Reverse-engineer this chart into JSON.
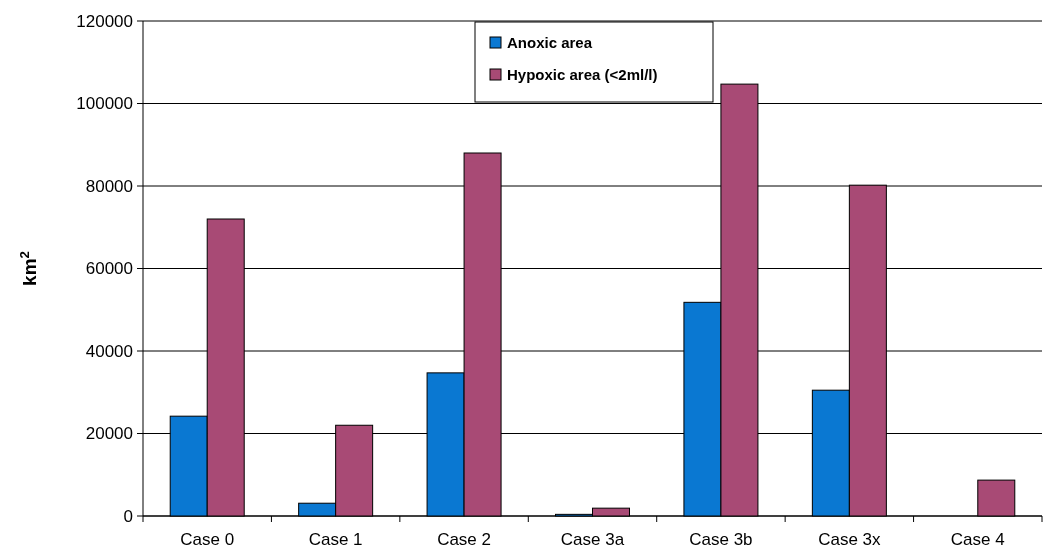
{
  "chart_data": {
    "type": "bar",
    "ylabel": "km$^{2}$",
    "categories": [
      "Case 0",
      "Case 1",
      "Case 2",
      "Case 3a",
      "Case 3b",
      "Case 3x",
      "Case 4"
    ],
    "series": [
      {
        "name": "Anoxic area",
        "color": "#0a78d2",
        "values": [
          24200,
          3100,
          34700,
          400,
          51800,
          30500,
          0
        ]
      },
      {
        "name": "Hypoxic area (<2ml/l)",
        "color": "#a84a75",
        "values": [
          72000,
          22000,
          88000,
          1900,
          104700,
          80200,
          8700
        ]
      }
    ],
    "ylim": [
      0,
      120000
    ],
    "yticks": [
      0,
      20000,
      40000,
      60000,
      80000,
      100000,
      120000
    ],
    "grid": "y",
    "legend": "top"
  }
}
